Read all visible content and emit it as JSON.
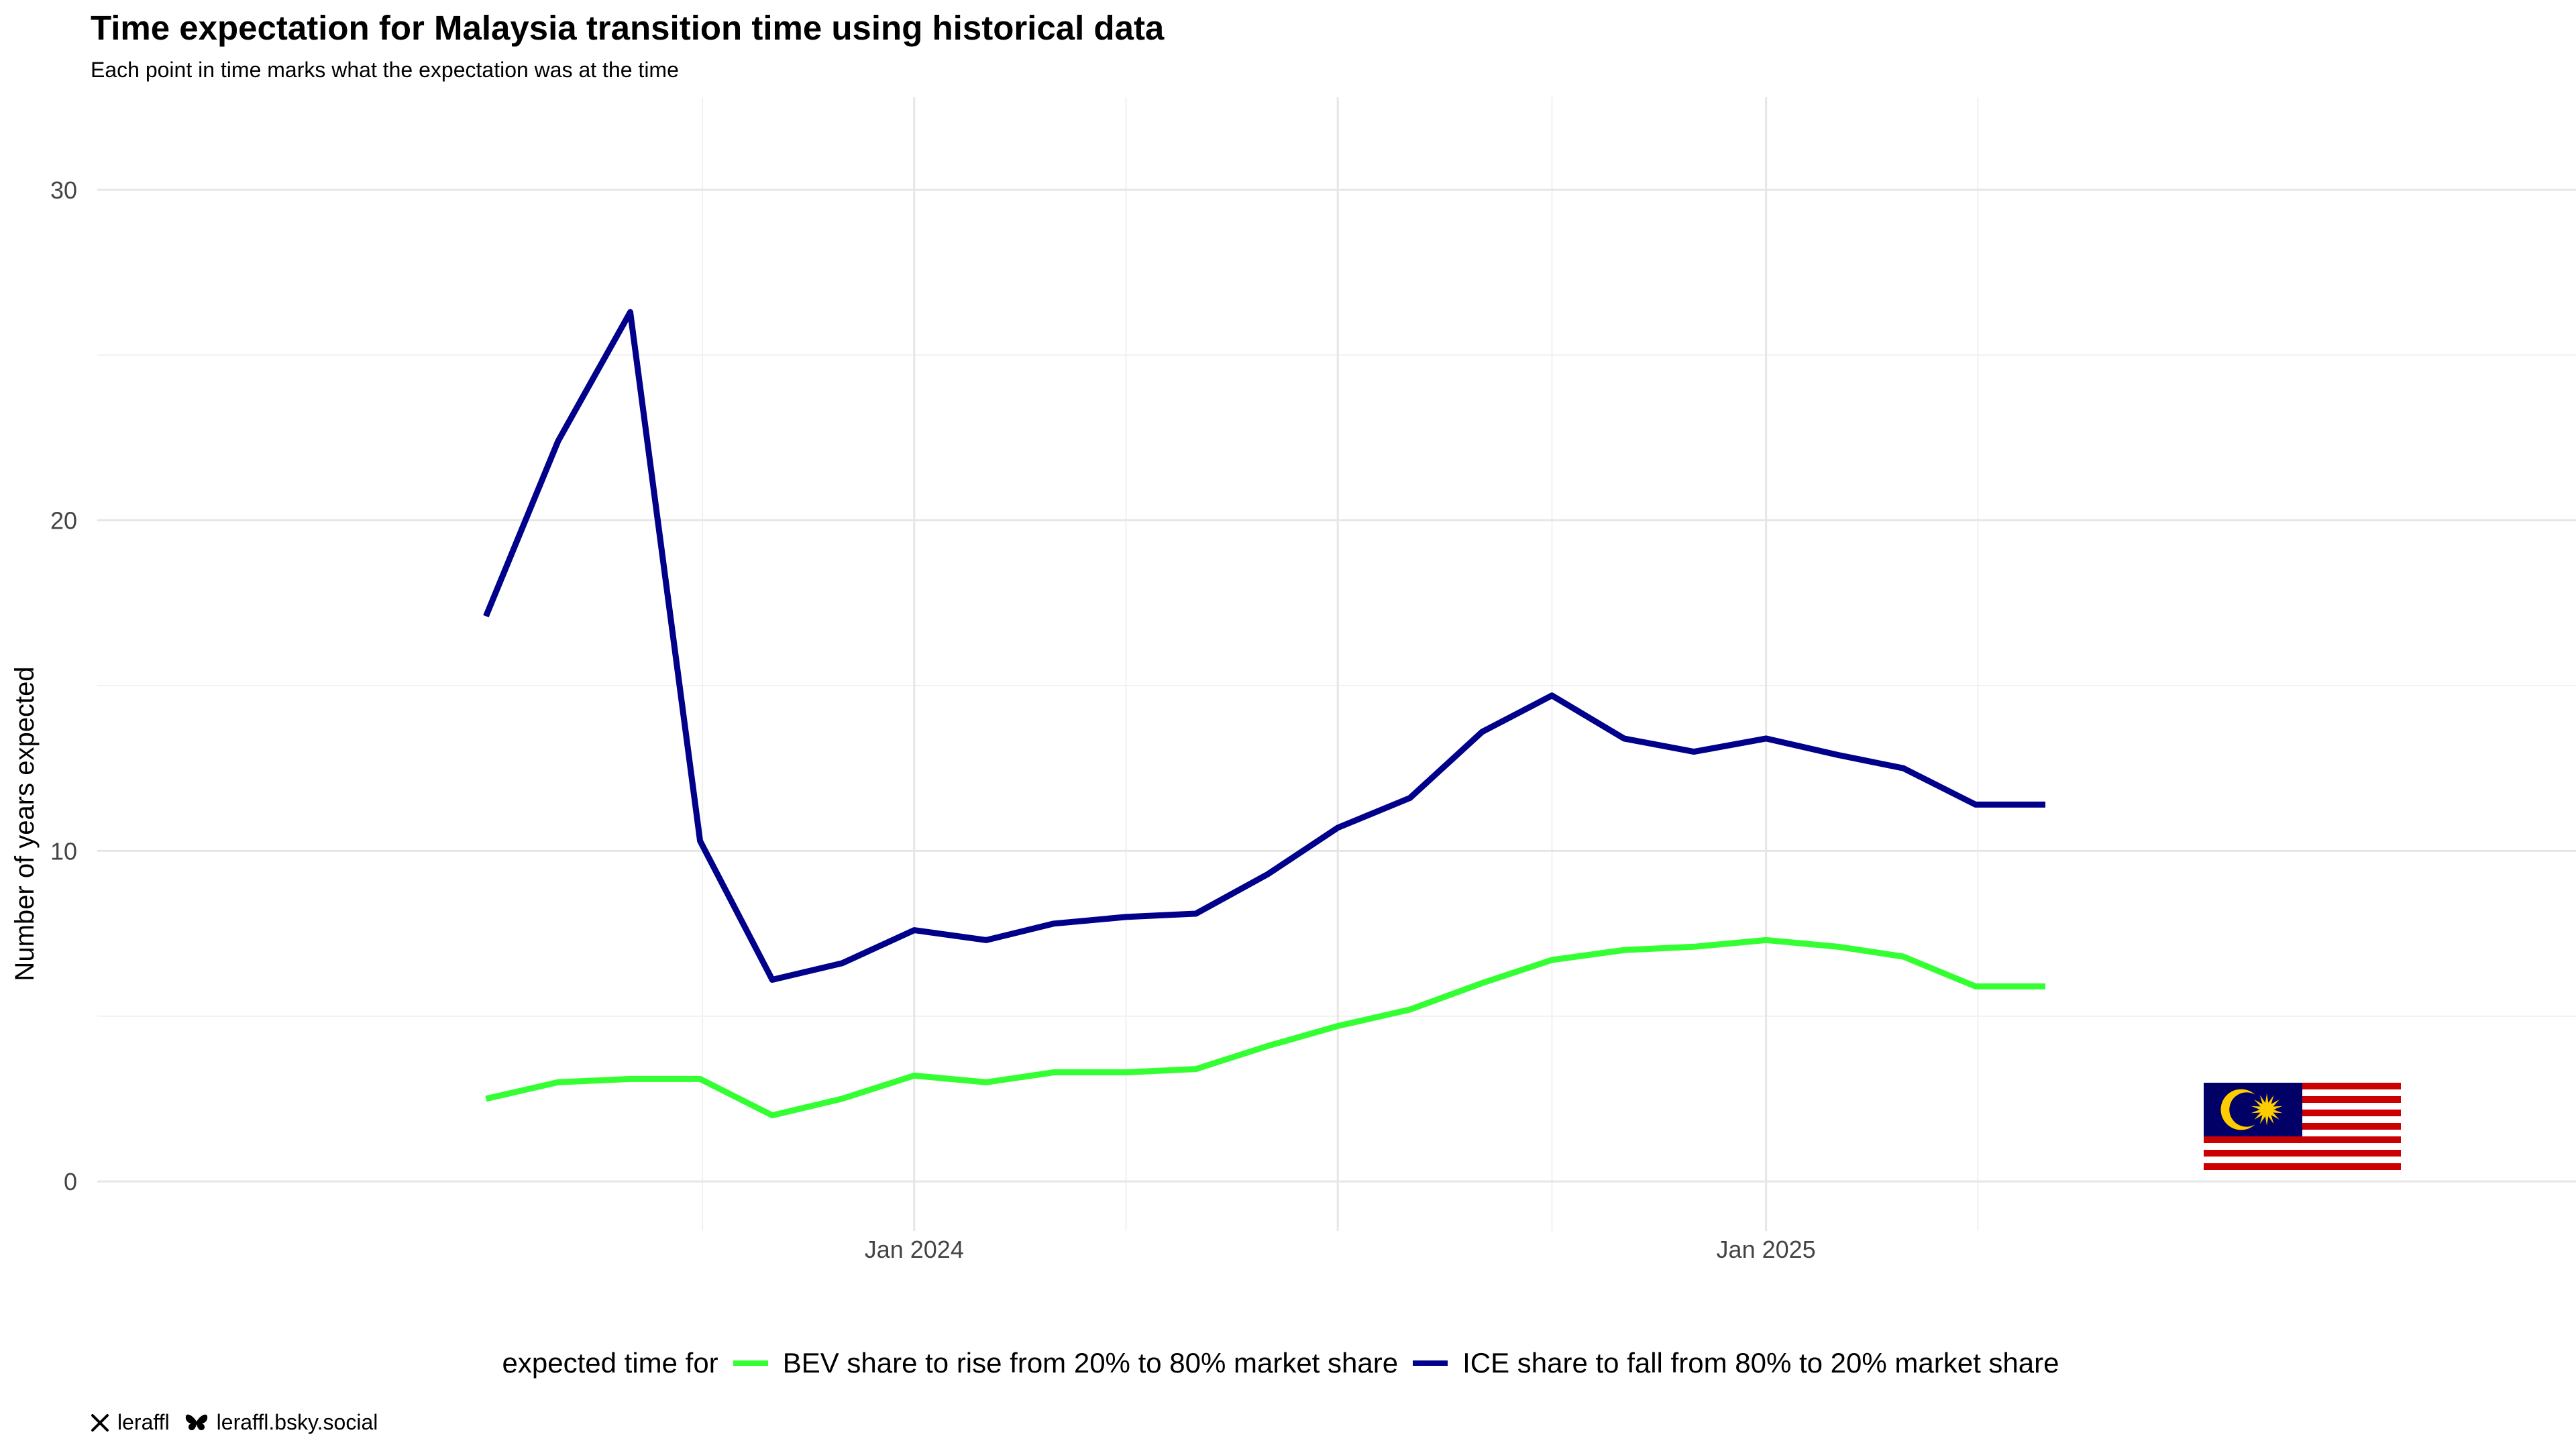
{
  "title": "Time expectation for Malaysia transition time using historical data",
  "subtitle": "Each point in time marks what the expectation was at the time",
  "footer": {
    "x_handle": "leraffl",
    "bsky_handle": "leraffl.bsky.social",
    "x_icon": "x-logo-icon",
    "bsky_icon": "butterfly-icon"
  },
  "legend": {
    "title": "expected time for",
    "position": "bottom"
  },
  "flag": "malaysia-flag",
  "chart_data": {
    "type": "line",
    "ylabel": "Number of years expected",
    "xlabel": "",
    "ylim": [
      -1.5,
      32.8
    ],
    "xlim": [
      "2023-01-15",
      "2025-12-15"
    ],
    "y_ticks": [
      0,
      10,
      20,
      30
    ],
    "x_ticks": [
      {
        "date": "2024-01-01",
        "label": "Jan 2024"
      },
      {
        "date": "2024-07-01",
        "label": ""
      },
      {
        "date": "2025-01-01",
        "label": "Jan 2025"
      }
    ],
    "grid": true,
    "x": [
      "2023-07-01",
      "2023-08-01",
      "2023-09-01",
      "2023-10-01",
      "2023-11-01",
      "2023-12-01",
      "2024-01-01",
      "2024-02-01",
      "2024-03-01",
      "2024-04-01",
      "2024-05-01",
      "2024-06-01",
      "2024-07-01",
      "2024-08-01",
      "2024-09-01",
      "2024-10-01",
      "2024-11-01",
      "2024-12-01",
      "2025-01-01",
      "2025-02-01",
      "2025-03-01",
      "2025-04-01",
      "2025-05-01"
    ],
    "series": [
      {
        "name": "BEV share to rise from 20% to 80% market share",
        "color": "#33ff33",
        "values": [
          2.5,
          3.0,
          3.1,
          3.1,
          2.0,
          2.5,
          3.2,
          3.0,
          3.3,
          3.3,
          3.4,
          4.1,
          4.7,
          5.2,
          6.0,
          6.7,
          7.0,
          7.1,
          7.3,
          7.1,
          6.8,
          5.9,
          5.9
        ]
      },
      {
        "name": "ICE share to fall from 80% to 20% market share",
        "color": "#00008b",
        "values": [
          17.1,
          22.4,
          26.3,
          10.3,
          6.1,
          6.6,
          7.6,
          7.3,
          7.8,
          8.0,
          8.1,
          9.3,
          10.7,
          11.6,
          13.6,
          14.7,
          13.4,
          13.0,
          13.4,
          12.9,
          12.5,
          11.4,
          11.4
        ]
      }
    ]
  }
}
